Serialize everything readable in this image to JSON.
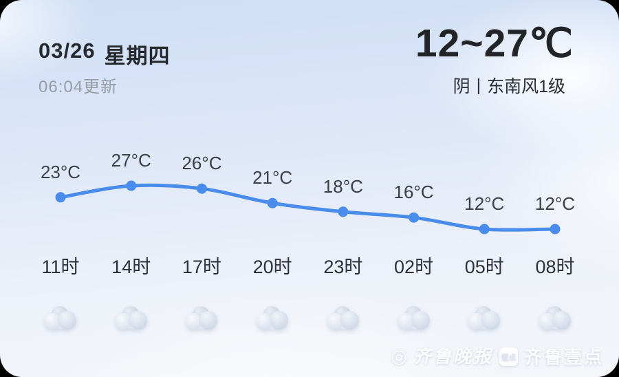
{
  "header": {
    "date": "03/26",
    "weekday": "星期四",
    "updated": "06:04更新",
    "temp_range": "12~27℃",
    "condition": "阴",
    "separator": "|",
    "wind": "东南风1级"
  },
  "chart_data": {
    "type": "line",
    "x": [
      "11时",
      "14时",
      "17时",
      "20时",
      "23时",
      "02时",
      "05时",
      "08时"
    ],
    "values": [
      23,
      27,
      26,
      21,
      18,
      16,
      12,
      12
    ],
    "point_labels": [
      "23°C",
      "27°C",
      "26°C",
      "21°C",
      "18°C",
      "16°C",
      "12°C",
      "12°C"
    ],
    "condition_icons": [
      "overcast-cloud",
      "overcast-cloud",
      "overcast-cloud",
      "overcast-cloud",
      "overcast-cloud",
      "overcast-cloud",
      "overcast-cloud",
      "overcast-cloud"
    ],
    "line_color": "#4a8cec",
    "y_range_shown": [
      12,
      27
    ],
    "grid": false,
    "legend": false
  },
  "watermark": {
    "press_logo_glyph": "◎",
    "press_name": "齐鲁晚报",
    "badge_text": "壹点",
    "app_name": "齐鲁壹点"
  },
  "colors": {
    "accent_blue": "#4a8cec",
    "title_text": "#26292e",
    "muted_text": "#979da7",
    "label_text": "#3a3e45",
    "sky_top": "#cedef5",
    "sky_bottom": "#f4f6fa"
  }
}
